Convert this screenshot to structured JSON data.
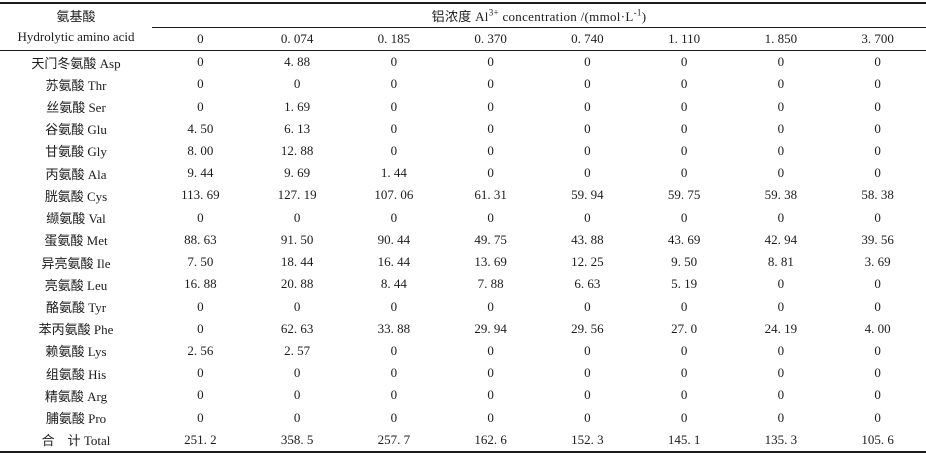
{
  "page": {
    "background_color": "#ffffff",
    "text_color": "#1c1c1e",
    "rule_color": "#1c1c1e"
  },
  "table": {
    "row_header": {
      "line1": "氨基酸",
      "line2": "Hydrolytic amino acid"
    },
    "span_header": {
      "prefix": "铝浓度 Al",
      "sup1": "3+",
      "mid": " concentration /(mmol·L",
      "sup2": "-1",
      "suffix": ")"
    },
    "concentrations": [
      "0",
      "0. 074",
      "0. 185",
      "0. 370",
      "0. 740",
      "1. 110",
      "1. 850",
      "3. 700"
    ],
    "rows": [
      {
        "label": "天门冬氨酸 Asp",
        "values": [
          "0",
          "4. 88",
          "0",
          "0",
          "0",
          "0",
          "0",
          "0"
        ]
      },
      {
        "label": "苏氨酸 Thr",
        "values": [
          "0",
          "0",
          "0",
          "0",
          "0",
          "0",
          "0",
          "0"
        ]
      },
      {
        "label": "丝氨酸 Ser",
        "values": [
          "0",
          "1. 69",
          "0",
          "0",
          "0",
          "0",
          "0",
          "0"
        ]
      },
      {
        "label": "谷氨酸 Glu",
        "values": [
          "4. 50",
          "6. 13",
          "0",
          "0",
          "0",
          "0",
          "0",
          "0"
        ]
      },
      {
        "label": "甘氨酸 Gly",
        "values": [
          "8. 00",
          "12. 88",
          "0",
          "0",
          "0",
          "0",
          "0",
          "0"
        ]
      },
      {
        "label": "丙氨酸 Ala",
        "values": [
          "9. 44",
          "9. 69",
          "1. 44",
          "0",
          "0",
          "0",
          "0",
          "0"
        ]
      },
      {
        "label": "胱氨酸 Cys",
        "values": [
          "113. 69",
          "127. 19",
          "107. 06",
          "61. 31",
          "59. 94",
          "59. 75",
          "59. 38",
          "58. 38"
        ]
      },
      {
        "label": "缬氨酸 Val",
        "values": [
          "0",
          "0",
          "0",
          "0",
          "0",
          "0",
          "0",
          "0"
        ]
      },
      {
        "label": "蛋氨酸 Met",
        "values": [
          "88. 63",
          "91. 50",
          "90. 44",
          "49. 75",
          "43. 88",
          "43. 69",
          "42. 94",
          "39. 56"
        ]
      },
      {
        "label": "异亮氨酸 Ile",
        "values": [
          "7. 50",
          "18. 44",
          "16. 44",
          "13. 69",
          "12. 25",
          "9. 50",
          "8. 81",
          "3. 69"
        ]
      },
      {
        "label": "亮氨酸 Leu",
        "values": [
          "16. 88",
          "20. 88",
          "8. 44",
          "7. 88",
          "6. 63",
          "5. 19",
          "0",
          "0"
        ]
      },
      {
        "label": "酪氨酸 Tyr",
        "values": [
          "0",
          "0",
          "0",
          "0",
          "0",
          "0",
          "0",
          "0"
        ]
      },
      {
        "label": "苯丙氨酸 Phe",
        "values": [
          "0",
          "62. 63",
          "33. 88",
          "29. 94",
          "29. 56",
          "27. 0",
          "24. 19",
          "4. 00"
        ]
      },
      {
        "label": "赖氨酸 Lys",
        "values": [
          "2. 56",
          "2. 57",
          "0",
          "0",
          "0",
          "0",
          "0",
          "0"
        ]
      },
      {
        "label": "组氨酸 His",
        "values": [
          "0",
          "0",
          "0",
          "0",
          "0",
          "0",
          "0",
          "0"
        ]
      },
      {
        "label": "精氨酸 Arg",
        "values": [
          "0",
          "0",
          "0",
          "0",
          "0",
          "0",
          "0",
          "0"
        ]
      },
      {
        "label": "脯氨酸 Pro",
        "values": [
          "0",
          "0",
          "0",
          "0",
          "0",
          "0",
          "0",
          "0"
        ]
      },
      {
        "label": "合　计 Total",
        "values": [
          "251. 2",
          "358. 5",
          "257. 7",
          "162. 6",
          "152. 3",
          "145. 1",
          "135. 3",
          "105. 6"
        ]
      }
    ]
  }
}
